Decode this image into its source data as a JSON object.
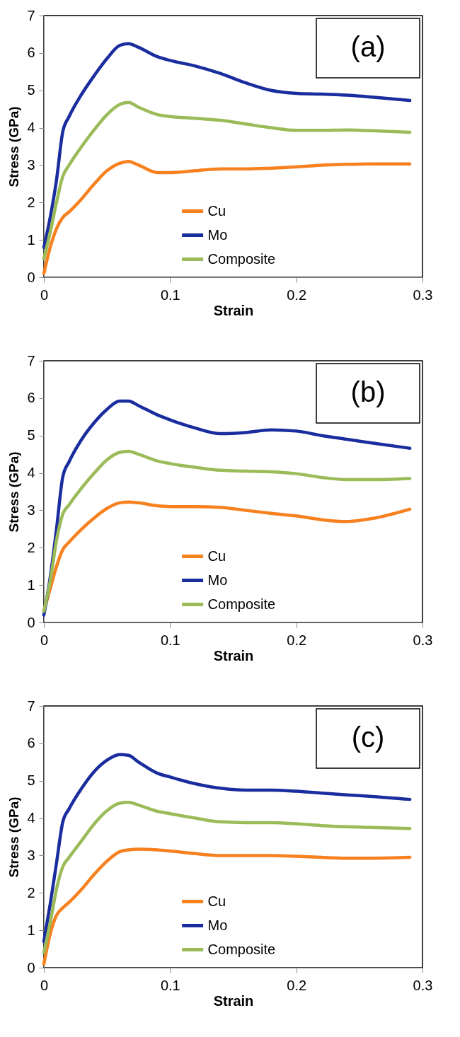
{
  "chart_data": [
    {
      "type": "line",
      "xlabel": "Strain",
      "ylabel": "Stress (GPa)",
      "annotations": [
        "(a)"
      ],
      "xlim": [
        0,
        0.3
      ],
      "xticks": [
        0,
        0.1,
        0.2,
        0.3
      ],
      "ylim": [
        0,
        7
      ],
      "yticks": [
        0,
        1,
        2,
        3,
        4,
        5,
        6,
        7
      ],
      "grid": false,
      "legend": "bottom",
      "line_style": "solid",
      "x": [
        0,
        0.005,
        0.01,
        0.015,
        0.02,
        0.03,
        0.04,
        0.05,
        0.06,
        0.067,
        0.075,
        0.09,
        0.1,
        0.12,
        0.14,
        0.16,
        0.18,
        0.2,
        0.22,
        0.24,
        0.26,
        0.29
      ],
      "series": [
        {
          "name": "Cu",
          "color": "#f7801f",
          "values": [
            0.1,
            0.8,
            1.3,
            1.6,
            1.75,
            2.1,
            2.5,
            2.85,
            3.05,
            3.1,
            3.0,
            2.8,
            2.8,
            2.85,
            2.9,
            2.9,
            2.92,
            2.95,
            3.0,
            3.02,
            3.03,
            3.03
          ]
        },
        {
          "name": "Mo",
          "color": "#1a2d9e",
          "values": [
            0.8,
            1.6,
            2.6,
            3.9,
            4.3,
            4.9,
            5.4,
            5.85,
            6.2,
            6.25,
            6.15,
            5.9,
            5.8,
            5.65,
            5.45,
            5.2,
            5.0,
            4.92,
            4.9,
            4.87,
            4.82,
            4.73
          ]
        },
        {
          "name": "Composite",
          "color": "#9bbb59",
          "values": [
            0.5,
            1.2,
            2.0,
            2.7,
            3.0,
            3.5,
            3.95,
            4.35,
            4.62,
            4.68,
            4.55,
            4.35,
            4.3,
            4.25,
            4.2,
            4.1,
            4.0,
            3.93,
            3.93,
            3.94,
            3.92,
            3.88
          ]
        }
      ]
    },
    {
      "type": "line",
      "xlabel": "Strain",
      "ylabel": "Stress (GPa)",
      "annotations": [
        "(b)"
      ],
      "xlim": [
        0,
        0.3
      ],
      "xticks": [
        0,
        0.1,
        0.2,
        0.3
      ],
      "ylim": [
        0,
        7
      ],
      "yticks": [
        0,
        1,
        2,
        3,
        4,
        5,
        6,
        7
      ],
      "grid": false,
      "legend": "bottom",
      "line_style": "solid",
      "x": [
        0,
        0.005,
        0.01,
        0.015,
        0.02,
        0.03,
        0.04,
        0.05,
        0.06,
        0.067,
        0.075,
        0.09,
        0.1,
        0.12,
        0.14,
        0.16,
        0.18,
        0.2,
        0.22,
        0.24,
        0.26,
        0.29
      ],
      "series": [
        {
          "name": "Cu",
          "color": "#f7801f",
          "values": [
            0.3,
            0.9,
            1.5,
            1.95,
            2.15,
            2.5,
            2.8,
            3.05,
            3.2,
            3.22,
            3.2,
            3.12,
            3.1,
            3.1,
            3.08,
            3.0,
            2.92,
            2.85,
            2.75,
            2.7,
            2.78,
            3.03
          ]
        },
        {
          "name": "Mo",
          "color": "#1a2d9e",
          "values": [
            0.2,
            1.2,
            2.5,
            3.9,
            4.3,
            4.9,
            5.35,
            5.7,
            5.92,
            5.92,
            5.8,
            5.55,
            5.42,
            5.2,
            5.05,
            5.08,
            5.15,
            5.12,
            5.0,
            4.9,
            4.8,
            4.66
          ]
        },
        {
          "name": "Composite",
          "color": "#9bbb59",
          "values": [
            0.3,
            1.1,
            2.2,
            2.9,
            3.15,
            3.6,
            4.0,
            4.35,
            4.55,
            4.58,
            4.5,
            4.32,
            4.25,
            4.15,
            4.07,
            4.05,
            4.03,
            3.98,
            3.88,
            3.82,
            3.82,
            3.85
          ]
        }
      ]
    },
    {
      "type": "line",
      "xlabel": "Strain",
      "ylabel": "Stress (GPa)",
      "annotations": [
        "(c)"
      ],
      "xlim": [
        0,
        0.3
      ],
      "xticks": [
        0,
        0.1,
        0.2,
        0.3
      ],
      "ylim": [
        0,
        7
      ],
      "yticks": [
        0,
        1,
        2,
        3,
        4,
        5,
        6,
        7
      ],
      "grid": false,
      "legend": "bottom",
      "line_style": "solid",
      "x": [
        0,
        0.005,
        0.01,
        0.015,
        0.02,
        0.03,
        0.04,
        0.05,
        0.06,
        0.067,
        0.075,
        0.09,
        0.1,
        0.12,
        0.14,
        0.16,
        0.18,
        0.2,
        0.22,
        0.24,
        0.26,
        0.29
      ],
      "series": [
        {
          "name": "Cu",
          "color": "#f7801f",
          "values": [
            0.1,
            0.9,
            1.4,
            1.6,
            1.75,
            2.1,
            2.5,
            2.85,
            3.1,
            3.15,
            3.17,
            3.15,
            3.12,
            3.05,
            3.0,
            3.0,
            3.0,
            2.98,
            2.95,
            2.93,
            2.93,
            2.95
          ]
        },
        {
          "name": "Mo",
          "color": "#1a2d9e",
          "values": [
            0.7,
            1.7,
            2.8,
            3.9,
            4.25,
            4.8,
            5.25,
            5.55,
            5.7,
            5.68,
            5.5,
            5.2,
            5.1,
            4.92,
            4.8,
            4.75,
            4.75,
            4.72,
            4.67,
            4.62,
            4.58,
            4.5
          ]
        },
        {
          "name": "Composite",
          "color": "#9bbb59",
          "values": [
            0.4,
            1.2,
            2.1,
            2.7,
            2.95,
            3.4,
            3.85,
            4.2,
            4.4,
            4.42,
            4.35,
            4.18,
            4.12,
            4.0,
            3.9,
            3.88,
            3.88,
            3.85,
            3.8,
            3.77,
            3.75,
            3.72
          ]
        }
      ]
    }
  ]
}
